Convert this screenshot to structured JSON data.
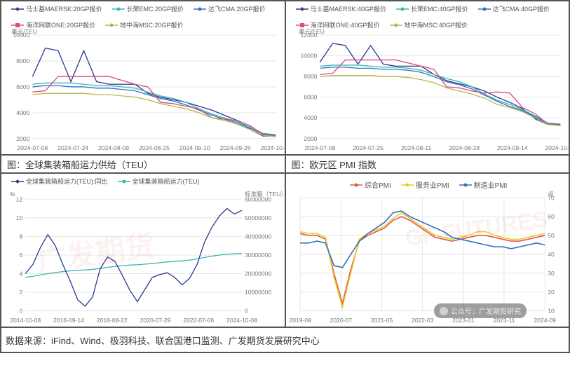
{
  "captions": {
    "bottom_left": "图：全球集装箱船运力供给（TEU）",
    "bottom_right": "图：欧元区 PMI 指数"
  },
  "source_line": "数据来源：iFind、Wind、极羽科技、联合国港口监测、广发期货发展研究中心",
  "badge_text": "公众号：广发期货研究",
  "chart_top_left": {
    "type": "line",
    "y_unit": "美元/TEU",
    "y_unit_fontsize": 9,
    "ylim": [
      2000,
      10000
    ],
    "ytick_step": 2000,
    "x_labels": [
      "2024-07-08",
      "2024-07-24",
      "2024-08-09",
      "2024-08-25",
      "2024-09-10",
      "2024-09-26",
      "2024-10-08"
    ],
    "series": [
      {
        "name": "马士基MAERSK:20GP报价",
        "color": "#2b3a8f",
        "marker": "diamond",
        "y": [
          6800,
          9000,
          8800,
          6400,
          8800,
          6400,
          6200,
          6200,
          6200,
          5500,
          5200,
          5000,
          4800,
          4500,
          4200,
          3800,
          3400,
          2700,
          2200,
          2200
        ]
      },
      {
        "name": "长荣EMC:20GP报价",
        "color": "#3bb6b0",
        "marker": "circle",
        "y": [
          6200,
          6300,
          6300,
          6300,
          6200,
          6100,
          6100,
          6000,
          5900,
          5600,
          5300,
          5100,
          4800,
          4300,
          3900,
          3600,
          3300,
          2900,
          2400,
          2300
        ]
      },
      {
        "name": "达飞CMA:20GP报价",
        "color": "#2f74c0",
        "marker": "circle",
        "y": [
          6000,
          6100,
          6100,
          6000,
          6000,
          5900,
          5900,
          5800,
          5700,
          5400,
          5100,
          4900,
          4600,
          4200,
          3800,
          3500,
          3200,
          2800,
          2350,
          2250
        ]
      },
      {
        "name": "海洋网联ONE:20GP报价",
        "color": "#d94b87",
        "marker": "square",
        "y": [
          5600,
          5700,
          6800,
          6800,
          6800,
          6800,
          6800,
          6500,
          6200,
          6000,
          4800,
          4700,
          4500,
          4300,
          3600,
          3500,
          3400,
          3000,
          2300,
          2200
        ]
      },
      {
        "name": "地中海MSC:20GP报价",
        "color": "#b8b84a",
        "marker": "circle",
        "y": [
          5400,
          5500,
          5500,
          5500,
          5500,
          5400,
          5400,
          5300,
          5200,
          5000,
          4700,
          4500,
          4300,
          4000,
          3600,
          3400,
          3100,
          2700,
          2250,
          2150
        ]
      }
    ],
    "background_color": "#ffffff",
    "grid_color": "#e6e6e6",
    "line_width": 1.3
  },
  "chart_top_right": {
    "type": "line",
    "y_unit": "美元/FEU",
    "y_unit_fontsize": 9,
    "ylim": [
      2000,
      12000
    ],
    "ytick_step": 2000,
    "x_labels": [
      "2024-07-08",
      "2024-07-25",
      "2024-08-11",
      "2024-08-28",
      "2024-09-14",
      "2024-10-08"
    ],
    "series": [
      {
        "name": "马士基MAERSK:40GP报价",
        "color": "#2b3a8f",
        "marker": "diamond",
        "y": [
          9400,
          11200,
          11000,
          9200,
          11000,
          9200,
          9000,
          9000,
          9000,
          8200,
          7600,
          7300,
          7000,
          6600,
          6000,
          5500,
          4900,
          3900,
          3350,
          3350
        ]
      },
      {
        "name": "长荣EMC:40GP报价",
        "color": "#3bb6b0",
        "marker": "circle",
        "y": [
          9000,
          9100,
          9100,
          9100,
          9000,
          8900,
          8900,
          8800,
          8600,
          8200,
          7800,
          7500,
          7000,
          6300,
          5700,
          5300,
          4800,
          4200,
          3500,
          3400
        ]
      },
      {
        "name": "达飞CMA:40GP报价",
        "color": "#2f74c0",
        "marker": "circle",
        "y": [
          8800,
          8900,
          8900,
          8800,
          8800,
          8700,
          8700,
          8600,
          8400,
          8000,
          7500,
          7200,
          6800,
          6200,
          5600,
          5100,
          4700,
          4100,
          3450,
          3350
        ]
      },
      {
        "name": "海洋网联ONE:40GP报价",
        "color": "#d94b87",
        "marker": "square",
        "y": [
          8200,
          8300,
          9600,
          9600,
          9600,
          9600,
          9600,
          9300,
          9000,
          8700,
          7000,
          6900,
          6600,
          6400,
          6500,
          6400,
          5000,
          4400,
          3400,
          3300
        ]
      },
      {
        "name": "地中海MSC:40GP报价",
        "color": "#b8b84a",
        "marker": "circle",
        "y": [
          8000,
          8100,
          8100,
          8100,
          8100,
          8000,
          8000,
          7900,
          7700,
          7400,
          6900,
          6600,
          6300,
          5900,
          5300,
          5000,
          4600,
          4000,
          3350,
          3250
        ]
      }
    ],
    "background_color": "#ffffff",
    "grid_color": "#e6e6e6",
    "line_width": 1.3
  },
  "chart_bottom_left": {
    "type": "line_dual_axis",
    "left_unit": "%",
    "right_unit": "标准箱（TEU）",
    "ylim_left": [
      0,
      12
    ],
    "ytick_left_step": 2,
    "ylim_right": [
      0,
      60000000
    ],
    "ytick_right_step": 10000000,
    "x_labels": [
      "2014-10-08",
      "2016-09-14",
      "2018-08-22",
      "2020-07-29",
      "2022-07-06",
      "2024-10-08"
    ],
    "series_left": {
      "name": "全球集装箱船运力(TEU):同比",
      "color": "#2b3a8f",
      "marker": "diamond",
      "y": [
        4.0,
        5.0,
        6.8,
        8.2,
        7.0,
        5.0,
        3.2,
        1.2,
        0.5,
        1.5,
        4.5,
        5.8,
        5.3,
        3.8,
        2.2,
        1.0,
        2.3,
        3.6,
        3.9,
        4.1,
        3.6,
        2.8,
        3.5,
        5.0,
        7.4,
        9.0,
        10.2,
        11.0,
        10.4,
        10.8
      ]
    },
    "series_right": {
      "name": "全球集装箱船运力(TEU)",
      "color": "#3bb6b0",
      "marker": "circle",
      "y": [
        18000000,
        18600000,
        19300000,
        20000000,
        20600000,
        21100000,
        21500000,
        21800000,
        22000000,
        22300000,
        22800000,
        23400000,
        23900000,
        24300000,
        24600000,
        24800000,
        25100000,
        25500000,
        25900000,
        26300000,
        26600000,
        26900000,
        27300000,
        27900000,
        28700000,
        29400000,
        30000000,
        30400000,
        30700000,
        30900000
      ]
    },
    "background_color": "#ffffff",
    "grid_color": "#e6e6e6",
    "line_width": 1.3
  },
  "chart_bottom_right": {
    "type": "line",
    "right_unit": "点",
    "ylim": [
      10,
      70
    ],
    "ytick_step": 10,
    "x_labels": [
      "2019-09",
      "2020-07",
      "2021-05",
      "2022-03",
      "2023-01",
      "2023-11",
      "2024-09"
    ],
    "series": [
      {
        "name": "综合PMI",
        "color": "#e05a4a",
        "marker": "circle",
        "y": [
          51,
          50,
          50,
          48,
          30,
          14,
          32,
          47,
          50,
          52,
          54,
          58,
          60,
          58,
          55,
          52,
          49,
          48,
          47,
          48,
          49,
          50,
          50,
          49,
          48,
          47,
          47,
          48,
          49,
          50
        ]
      },
      {
        "name": "服务业PMI",
        "color": "#e9c92f",
        "marker": "circle",
        "y": [
          52,
          51,
          51,
          49,
          28,
          12,
          30,
          48,
          51,
          53,
          55,
          59,
          62,
          59,
          56,
          53,
          50,
          49,
          48,
          49,
          50,
          52,
          52,
          50,
          49,
          48,
          48,
          49,
          50,
          51
        ]
      },
      {
        "name": "制造业PMI",
        "color": "#2f74c0",
        "marker": "circle",
        "y": [
          46,
          46,
          47,
          46,
          34,
          33,
          40,
          47,
          51,
          54,
          57,
          62,
          63,
          60,
          58,
          56,
          54,
          52,
          49,
          48,
          47,
          46,
          45,
          44,
          44,
          43,
          44,
          45,
          46,
          45
        ]
      }
    ],
    "background_color": "#ffffff",
    "grid_color": "#e6e6e6",
    "line_width": 1.6
  }
}
